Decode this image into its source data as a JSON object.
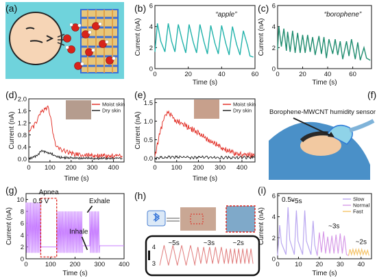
{
  "panel_labels": [
    "(a)",
    "(b)",
    "(c)",
    "(d)",
    "(e)",
    "(f)",
    "(g)",
    "(h)",
    "(i)"
  ],
  "colors": {
    "teal": "#20B2AA",
    "green": "#1E8C6E",
    "moist": "#E0241B",
    "dry": "#1a1a1a",
    "purple": "#C77DFF",
    "slow": "#B9A6F0",
    "normal": "#D79AE8",
    "fast": "#F5C46A",
    "mask_blue": "#2E7BD8"
  },
  "panel_a": {
    "icon": "face-exhale-molecules-electrode"
  },
  "panel_f": {
    "annotation": "Borophene-MWCNT humidity sensor",
    "icon": "patient-with-mask"
  },
  "panel_h": {
    "icons": [
      "bluetooth-icon",
      "face-mask-photo",
      "phone-frame"
    ]
  },
  "chart_data": [
    {
      "panel": "b",
      "type": "line",
      "annotation": "“apple”",
      "xlabel": "Time (s)",
      "ylabel": "Current (nA)",
      "xlim": [
        0,
        60
      ],
      "ylim": [
        0,
        6
      ],
      "xticks": [
        0,
        20,
        40,
        60
      ],
      "yticks": [
        0,
        2,
        4,
        6
      ],
      "series": [
        {
          "color": "#20B2AA",
          "x": [
            0,
            1.5,
            3.5,
            6,
            8,
            10,
            12,
            14,
            16.5,
            18.5,
            20.5,
            23,
            25,
            27,
            29.5,
            31.5,
            33.5,
            36,
            38,
            40,
            42.5,
            44.5,
            46.5,
            49,
            51,
            53,
            55.5,
            57,
            59
          ],
          "y": [
            1.6,
            4.3,
            2.6,
            1.6,
            4.3,
            2.6,
            1.6,
            4.2,
            2.6,
            1.5,
            4.2,
            2.5,
            1.5,
            4.2,
            2.5,
            1.4,
            4.1,
            2.4,
            1.4,
            4.1,
            2.4,
            1.3,
            4.0,
            2.3,
            1.3,
            3.6,
            2.2,
            1.2,
            1.1
          ]
        }
      ]
    },
    {
      "panel": "c",
      "type": "line",
      "annotation": "“borophene”",
      "xlabel": "Time (s)",
      "ylabel": "Current (nA)",
      "xlim": [
        0,
        75
      ],
      "ylim": [
        0,
        6
      ],
      "xticks": [
        0,
        20,
        40,
        60
      ],
      "yticks": [
        0,
        2,
        4,
        6
      ],
      "series": [
        {
          "color": "#1E8C6E",
          "x": [
            0,
            1,
            3,
            5,
            7,
            8,
            10,
            12,
            14,
            16,
            18,
            20,
            22,
            24,
            26,
            28,
            30,
            33,
            35,
            37,
            39,
            41,
            44,
            46,
            48,
            50,
            52,
            55,
            57,
            59,
            62,
            64,
            66,
            69,
            71,
            74
          ],
          "y": [
            1.8,
            4.0,
            2.1,
            3.8,
            1.7,
            3.5,
            1.6,
            3.6,
            1.5,
            3.4,
            1.5,
            3.2,
            1.5,
            3.2,
            1.6,
            3.0,
            1.3,
            3.1,
            1.4,
            3.0,
            1.0,
            2.8,
            1.4,
            2.8,
            1.3,
            2.6,
            0.9,
            2.6,
            1.2,
            2.8,
            0.9,
            2.5,
            0.8,
            2.0,
            1.0,
            0.8
          ]
        }
      ]
    },
    {
      "panel": "d",
      "type": "line",
      "xlabel": "Time (s)",
      "ylabel": "Current (nA)",
      "xlim": [
        0,
        450
      ],
      "ylim": [
        -0.1,
        2.0
      ],
      "xticks": [
        0,
        100,
        200,
        300,
        400
      ],
      "yticks": [
        0.0,
        0.4,
        0.8,
        1.2,
        1.6,
        2.0
      ],
      "legend": [
        "Moist skin",
        "Dry skin"
      ],
      "legend_position": "top-right",
      "series": [
        {
          "name": "Moist skin",
          "color": "#E0241B",
          "x": [
            0,
            10,
            20,
            30,
            40,
            50,
            60,
            70,
            80,
            90,
            100,
            110,
            120,
            130,
            140,
            150,
            160,
            170,
            180,
            190,
            200,
            210,
            220,
            230,
            240,
            250,
            260,
            280,
            300,
            320,
            340,
            360,
            380,
            400,
            420,
            445
          ],
          "y": [
            0.9,
            1.0,
            1.05,
            1.15,
            1.3,
            1.45,
            1.55,
            1.6,
            1.65,
            1.7,
            1.5,
            1.05,
            0.65,
            0.45,
            0.35,
            0.3,
            0.28,
            0.25,
            0.22,
            0.2,
            0.18,
            0.17,
            0.16,
            0.15,
            0.14,
            0.14,
            0.13,
            0.13,
            0.12,
            0.12,
            0.11,
            0.11,
            0.1,
            0.1,
            0.1,
            0.1
          ]
        },
        {
          "name": "Dry skin",
          "color": "#1a1a1a",
          "x": [
            0,
            20,
            40,
            60,
            80,
            100,
            120,
            140,
            160,
            180,
            200,
            220,
            240,
            260,
            280,
            300,
            320,
            340,
            360,
            380,
            400,
            420,
            445
          ],
          "y": [
            0.02,
            0.05,
            0.12,
            0.28,
            0.22,
            0.2,
            0.12,
            0.06,
            0.05,
            0.04,
            0.04,
            0.03,
            0.03,
            0.03,
            0.03,
            0.02,
            0.02,
            0.02,
            0.02,
            0.02,
            0.02,
            0.02,
            0.02
          ]
        }
      ]
    },
    {
      "panel": "e",
      "type": "line",
      "xlabel": "Time (s)",
      "ylabel": "Current (nA)",
      "xlim": [
        0,
        460
      ],
      "ylim": [
        -0.1,
        1.6
      ],
      "xticks": [
        0,
        100,
        200,
        300,
        400
      ],
      "yticks": [
        0.0,
        0.5,
        1.0,
        1.5
      ],
      "legend": [
        "Moist skin",
        "Dry skin"
      ],
      "legend_position": "top-right",
      "series": [
        {
          "name": "Moist skin",
          "color": "#E0241B",
          "x": [
            0,
            20,
            40,
            50,
            60,
            70,
            80,
            100,
            120,
            140,
            160,
            180,
            200,
            220,
            240,
            260,
            280,
            300,
            320,
            340,
            360,
            380,
            400,
            420,
            440,
            460
          ],
          "y": [
            0.05,
            0.6,
            1.05,
            1.15,
            1.2,
            1.18,
            1.1,
            1.0,
            0.95,
            0.88,
            0.82,
            0.75,
            0.68,
            0.6,
            0.52,
            0.45,
            0.38,
            0.32,
            0.25,
            0.2,
            0.15,
            0.12,
            0.1,
            0.08,
            0.07,
            0.06
          ]
        },
        {
          "name": "Dry skin",
          "color": "#1a1a1a",
          "x": [
            0,
            40,
            80,
            120,
            160,
            200,
            240,
            280,
            320,
            360,
            400,
            440,
            460
          ],
          "y": [
            0.0,
            0.02,
            0.03,
            0.03,
            0.02,
            0.03,
            0.03,
            0.02,
            0.02,
            0.02,
            0.02,
            0.02,
            0.02
          ]
        }
      ]
    },
    {
      "panel": "g",
      "type": "line",
      "xlabel": "Time (s)",
      "ylabel": "Current (nA)",
      "annotation": "0.5 V",
      "labels": [
        "Apnea",
        "Exhale",
        "Inhale"
      ],
      "xlim": [
        0,
        400
      ],
      "ylim": [
        0,
        11
      ],
      "xticks": [
        0,
        100,
        200,
        300,
        400
      ],
      "yticks": [
        0,
        2,
        4,
        6,
        8,
        10
      ],
      "apnea_window": [
        60,
        125
      ],
      "series": [
        {
          "color": "#C77DFF",
          "segments": [
            {
              "x_range": [
                0,
                60
              ],
              "high": 9.5,
              "low": 1.0,
              "period": 6
            },
            {
              "x_range": [
                60,
                125
              ],
              "flat": 2.0
            },
            {
              "x_range": [
                125,
                230
              ],
              "high": 8.0,
              "low": 1.0,
              "period": 6
            },
            {
              "x_range": [
                230,
                260
              ],
              "flat": 2.2
            },
            {
              "x_range": [
                260,
                300
              ],
              "high": 8.0,
              "low": 1.0,
              "period": 6
            },
            {
              "x_range": [
                300,
                400
              ],
              "flat": 2.2
            }
          ]
        }
      ]
    },
    {
      "panel": "h",
      "type": "line",
      "annotations": [
        "~5s",
        "~3s",
        "~2s"
      ],
      "ylim": [
        2.6,
        4.4
      ],
      "yticks": [
        3,
        4
      ],
      "series": [
        {
          "color": "#E07A7A",
          "segments": [
            {
              "x_range": [
                0,
                30
              ],
              "period": 7.5,
              "high": 4.1,
              "low": 2.9
            },
            {
              "x_range": [
                30,
                55
              ],
              "period": 5,
              "high": 4.0,
              "low": 3.0
            },
            {
              "x_range": [
                55,
                80
              ],
              "period": 3.5,
              "high": 3.9,
              "low": 3.0
            }
          ]
        }
      ]
    },
    {
      "panel": "i",
      "type": "line",
      "annotation": "0.5v",
      "labels": [
        "~5s",
        "~3s",
        "~2s"
      ],
      "xlabel": "Time (s)",
      "ylabel": "Current (nA)",
      "xlim": [
        0,
        45
      ],
      "ylim": [
        0,
        6.2
      ],
      "xticks": [
        0,
        10,
        20,
        30,
        40
      ],
      "yticks": [
        0,
        2,
        4,
        6
      ],
      "legend": [
        "Slow",
        "Normal",
        "Fast"
      ],
      "legend_position": "top-right",
      "series": [
        {
          "name": "Slow",
          "color": "#B9A6F0",
          "x": [
            0,
            1,
            1.8,
            4,
            5,
            5.8,
            8,
            9,
            9.8,
            12,
            13,
            13.8,
            16,
            17,
            17.8,
            19
          ],
          "y": [
            0.3,
            3.2,
            1.5,
            0.4,
            4.9,
            1.8,
            0.4,
            4.6,
            1.7,
            0.4,
            4.6,
            1.7,
            0.4,
            3.6,
            1.3,
            0.3
          ]
        },
        {
          "name": "Normal",
          "color": "#D79AE8",
          "x": [
            19,
            20,
            21,
            22,
            23,
            24,
            25,
            26,
            27,
            28,
            29,
            30,
            31,
            32,
            33,
            34
          ],
          "y": [
            0.3,
            2.5,
            0.6,
            2.6,
            0.5,
            2.1,
            0.5,
            2.2,
            0.5,
            2.3,
            0.5,
            2.4,
            0.5,
            2.2,
            0.4,
            0.3
          ]
        },
        {
          "name": "Fast",
          "color": "#F5C46A",
          "x": [
            34,
            34.7,
            35.4,
            36.1,
            36.8,
            37.5,
            38.2,
            38.9,
            39.6,
            40.3,
            41,
            41.7,
            42.4,
            43.1,
            43.8
          ],
          "y": [
            0.3,
            0.9,
            0.4,
            0.9,
            0.4,
            0.9,
            0.4,
            0.9,
            0.4,
            0.9,
            0.4,
            0.8,
            0.4,
            0.8,
            0.3
          ]
        }
      ]
    }
  ]
}
